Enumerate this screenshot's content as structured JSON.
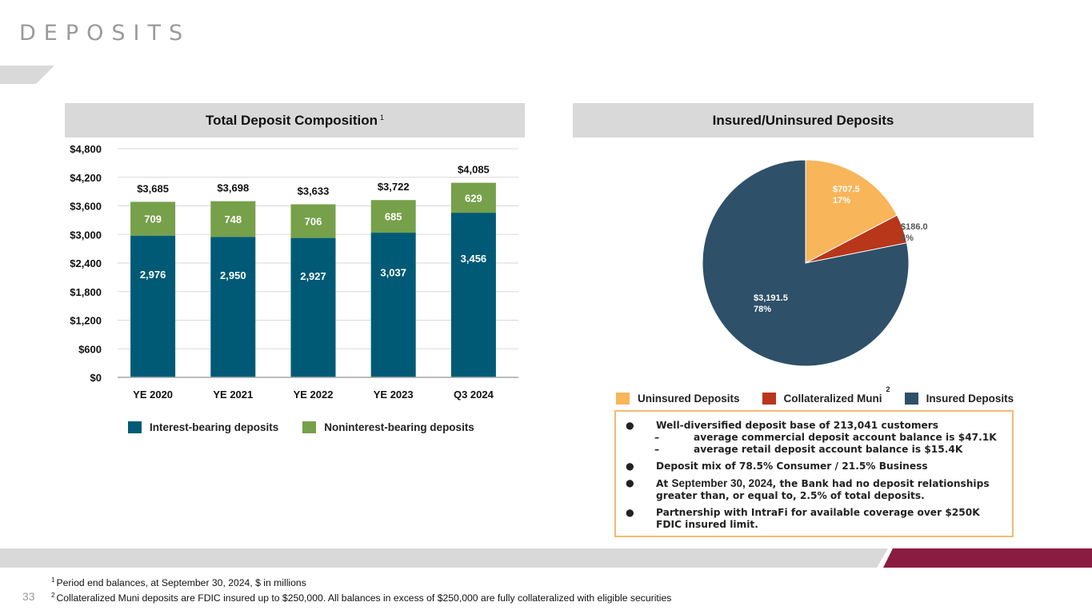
{
  "page": {
    "title": "DEPOSITS",
    "page_number": "33"
  },
  "left_panel": {
    "header": "Total Deposit Composition",
    "header_sup": "1"
  },
  "right_panel": {
    "header": "Insured/Uninsured Deposits"
  },
  "colors": {
    "interest_bearing": "#005a75",
    "noninterest_bearing": "#76a04a",
    "uninsured": "#f8b55a",
    "collateralized_muni": "#b8361a",
    "insured": "#2e5069",
    "header_bg": "#d9d9d9",
    "accent_maroon": "#8b1c41",
    "box_border": "#f5b970"
  },
  "chart_data": [
    {
      "type": "bar",
      "stacked": true,
      "title": "Total Deposit Composition",
      "categories": [
        "YE 2020",
        "YE 2021",
        "YE 2022",
        "YE 2023",
        "Q3 2024"
      ],
      "series": [
        {
          "name": "Interest-bearing deposits",
          "values": [
            2976,
            2950,
            2927,
            3037,
            3456
          ],
          "labels": [
            "2,976",
            "2,950",
            "2,927",
            "3,037",
            "3,456"
          ]
        },
        {
          "name": "Noninterest-bearing deposits",
          "values": [
            709,
            748,
            706,
            685,
            629
          ],
          "labels": [
            "709",
            "748",
            "706",
            "685",
            "629"
          ]
        }
      ],
      "totals": [
        3685,
        3698,
        3633,
        3722,
        4085
      ],
      "total_labels": [
        "$3,685",
        "$3,698",
        "$3,633",
        "$3,722",
        "$4,085"
      ],
      "ylim": [
        0,
        4800
      ],
      "yticks": [
        0,
        600,
        1200,
        1800,
        2400,
        3000,
        3600,
        4200,
        4800
      ],
      "ytick_labels": [
        "$0",
        "$600",
        "$1,200",
        "$1,800",
        "$2,400",
        "$3,000",
        "$3,600",
        "$4,200",
        "$4,800"
      ],
      "xlabel": "",
      "ylabel": "",
      "grid": true,
      "legend_position": "bottom"
    },
    {
      "type": "pie",
      "title": "Insured/Uninsured Deposits",
      "slices": [
        {
          "name": "Uninsured Deposits",
          "value": 707.5,
          "percent": 17,
          "label": "$707.5",
          "pct_label": "17%"
        },
        {
          "name": "Collateralized Muni",
          "value": 186.0,
          "percent": 5,
          "label": "$186.0",
          "pct_label": "5%"
        },
        {
          "name": "Insured Deposits",
          "value": 3191.5,
          "percent": 78,
          "label": "$3,191.5",
          "pct_label": "78%"
        }
      ],
      "legend_position": "bottom"
    }
  ],
  "bar_legend": [
    {
      "label": "Interest-bearing deposits"
    },
    {
      "label": "Noninterest-bearing deposits"
    }
  ],
  "pie_legend": [
    {
      "label": "Uninsured Deposits"
    },
    {
      "label": "Collateralized Muni",
      "sup": "2"
    },
    {
      "label": "Insured Deposits"
    }
  ],
  "notes": {
    "bullet_char": "●",
    "dash_char": "–",
    "b1": "Well-diversified deposit base of 213,041 customers",
    "b1_sub1": "average commercial deposit account balance is $47.1K",
    "b1_sub2": "average retail deposit account balance is $15.4K",
    "b2": "Deposit mix of 78.5% Consumer / 21.5% Business",
    "b3_prefix": "At ",
    "b3_date": "September 30, 2024",
    "b3_rest": ", the Bank had no deposit relationships greater than, or equal to, 2.5% of total deposits.",
    "b4": "Partnership with IntraFi for available coverage over $250K FDIC insured limit."
  },
  "footnotes": [
    {
      "sup": "1",
      "text": "Period end balances, at September 30, 2024, $ in millions"
    },
    {
      "sup": "2",
      "text": "Collateralized Muni deposits are FDIC insured up to $250,000. All balances in excess of $250,000 are fully collateralized with eligible securities"
    }
  ]
}
